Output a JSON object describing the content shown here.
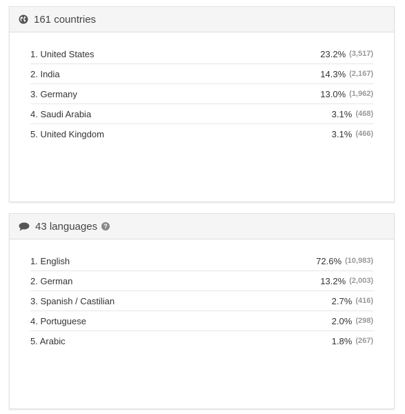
{
  "countries": {
    "title": "161 countries",
    "icon": "globe-icon",
    "items": [
      {
        "label": "1. United States",
        "percent": "23.2%",
        "count": "(3,517)"
      },
      {
        "label": "2. India",
        "percent": "14.3%",
        "count": "(2,167)"
      },
      {
        "label": "3. Germany",
        "percent": "13.0%",
        "count": "(1,962)"
      },
      {
        "label": "4. Saudi Arabia",
        "percent": "3.1%",
        "count": "(468)"
      },
      {
        "label": "5. United Kingdom",
        "percent": "3.1%",
        "count": "(466)"
      }
    ]
  },
  "languages": {
    "title": "43 languages",
    "icon": "speech-bubble-icon",
    "help_icon": "question-circle-icon",
    "items": [
      {
        "label": "1. English",
        "percent": "72.6%",
        "count": "(10,983)"
      },
      {
        "label": "2. German",
        "percent": "13.2%",
        "count": "(2,003)"
      },
      {
        "label": "3. Spanish / Castilian",
        "percent": "2.7%",
        "count": "(416)"
      },
      {
        "label": "4. Portuguese",
        "percent": "2.0%",
        "count": "(298)"
      },
      {
        "label": "5. Arabic",
        "percent": "1.8%",
        "count": "(267)"
      }
    ]
  },
  "colors": {
    "header_bg": "#f5f5f5",
    "text": "#333333",
    "count_text": "#999999",
    "icon": "#555555"
  }
}
